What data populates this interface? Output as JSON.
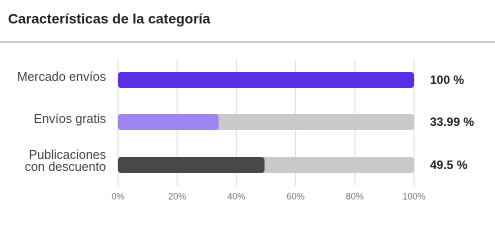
{
  "chart_data": {
    "type": "bar",
    "orientation": "horizontal",
    "title": "Características de la categoría",
    "categories": [
      "Mercado envíos",
      "Envíos gratis",
      "Publicaciones con descuento"
    ],
    "values": [
      100,
      33.99,
      49.5
    ],
    "value_labels": [
      "100 %",
      "33.99 %",
      "49.5 %"
    ],
    "colors": [
      "#5a2de6",
      "#9d84ef",
      "#484848"
    ],
    "track_color": "#c9c9c9",
    "xlim": [
      0,
      100
    ],
    "xticks": [
      {
        "value": 0,
        "label": "0%"
      },
      {
        "value": 20,
        "label": "20%"
      },
      {
        "value": 40,
        "label": "40%"
      },
      {
        "value": 60,
        "label": "60%"
      },
      {
        "value": 80,
        "label": "80%"
      },
      {
        "value": 100,
        "label": "100%"
      }
    ],
    "grid": true
  }
}
